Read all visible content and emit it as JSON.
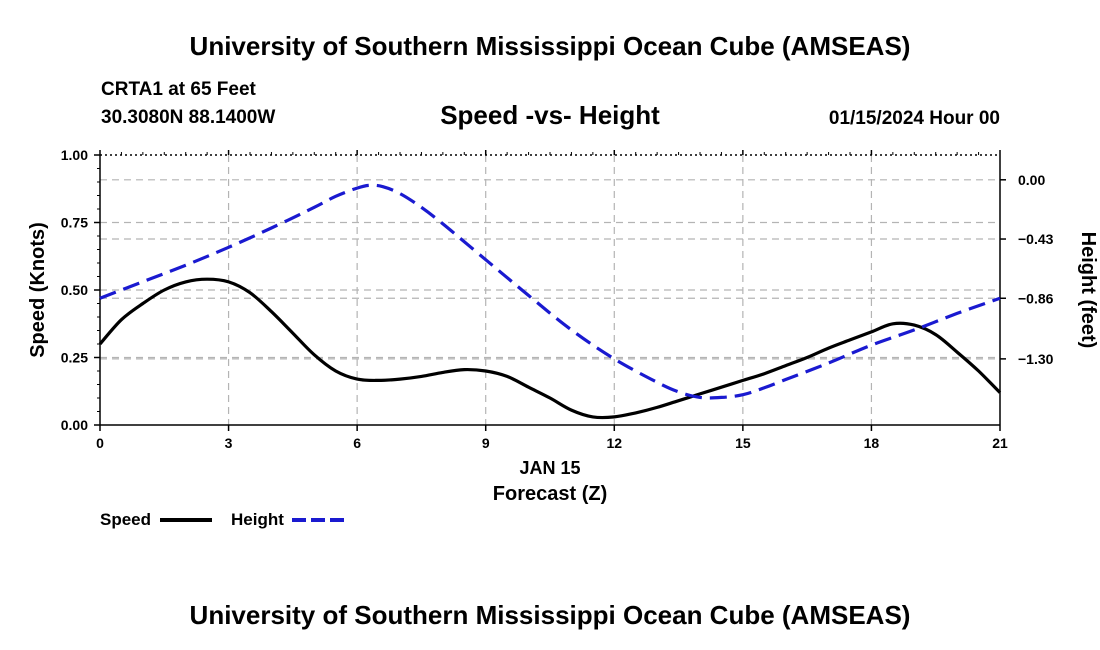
{
  "header": {
    "title_top": "University of Southern Mississippi Ocean Cube (AMSEAS)",
    "station": "CRTA1 at 65 Feet",
    "coords": "30.3080N  88.1400W",
    "subtitle": "Speed -vs- Height",
    "datetime": "01/15/2024 Hour 00",
    "title_bottom": "University of Southern Mississippi Ocean Cube (AMSEAS)"
  },
  "colors": {
    "speed": "#000000",
    "height": "#1a1ad0",
    "grid": "#b4b4b4"
  },
  "chart_data": {
    "type": "line",
    "title": "Speed -vs- Height",
    "xlabel_date": "JAN 15",
    "xlabel": "Forecast (Z)",
    "ylabel": "Speed (Knots)",
    "y2label": "Height (feet)",
    "xlim": [
      0,
      21
    ],
    "ylim": [
      0,
      1.0
    ],
    "y2lim": [
      -1.78,
      0.18
    ],
    "xticks": [
      0,
      3,
      6,
      9,
      12,
      15,
      18,
      21
    ],
    "xtick_labels": [
      "0",
      "3",
      "6",
      "9",
      "12",
      "15",
      "18",
      "21"
    ],
    "yticks": [
      0,
      0.25,
      0.5,
      0.75,
      1.0
    ],
    "ytick_labels": [
      "0.00",
      "0.25",
      "0.50",
      "0.75",
      "1.00"
    ],
    "y2ticks": [
      0.0,
      -0.43,
      -0.86,
      -1.3
    ],
    "y2tick_labels": [
      "0.00",
      "−0.43",
      "−0.86",
      "−1.30"
    ],
    "grid": true,
    "legend_position": "bottom-left",
    "series": [
      {
        "name": "Speed",
        "axis": "left",
        "style": "solid",
        "x": [
          0,
          0.5,
          1,
          1.5,
          2,
          2.5,
          3,
          3.5,
          4,
          4.5,
          5,
          5.5,
          6,
          6.5,
          7,
          7.5,
          8,
          8.5,
          9,
          9.5,
          10,
          10.5,
          11,
          11.5,
          12,
          12.5,
          13,
          13.5,
          14,
          14.5,
          15,
          15.5,
          16,
          16.5,
          17,
          17.5,
          18,
          18.5,
          19,
          19.5,
          20,
          20.5,
          21
        ],
        "values": [
          0.3,
          0.39,
          0.45,
          0.5,
          0.53,
          0.54,
          0.53,
          0.49,
          0.42,
          0.34,
          0.26,
          0.2,
          0.17,
          0.165,
          0.17,
          0.18,
          0.195,
          0.205,
          0.2,
          0.18,
          0.14,
          0.1,
          0.055,
          0.03,
          0.03,
          0.045,
          0.065,
          0.09,
          0.115,
          0.14,
          0.165,
          0.19,
          0.22,
          0.25,
          0.285,
          0.315,
          0.345,
          0.375,
          0.37,
          0.335,
          0.27,
          0.2,
          0.12
        ]
      },
      {
        "name": "Height",
        "axis": "right",
        "style": "dashed",
        "x": [
          0,
          1,
          2,
          3,
          4,
          5,
          5.5,
          6,
          6.3,
          6.6,
          7,
          7.5,
          8,
          9,
          10,
          11,
          12,
          13,
          13.5,
          14,
          14.5,
          15,
          15.5,
          16,
          17,
          18,
          19,
          20,
          21
        ],
        "values": [
          -0.86,
          -0.74,
          -0.62,
          -0.49,
          -0.35,
          -0.2,
          -0.12,
          -0.06,
          -0.04,
          -0.05,
          -0.1,
          -0.2,
          -0.32,
          -0.58,
          -0.84,
          -1.09,
          -1.3,
          -1.47,
          -1.54,
          -1.58,
          -1.58,
          -1.56,
          -1.51,
          -1.45,
          -1.33,
          -1.2,
          -1.09,
          -0.97,
          -0.86
        ]
      }
    ]
  }
}
